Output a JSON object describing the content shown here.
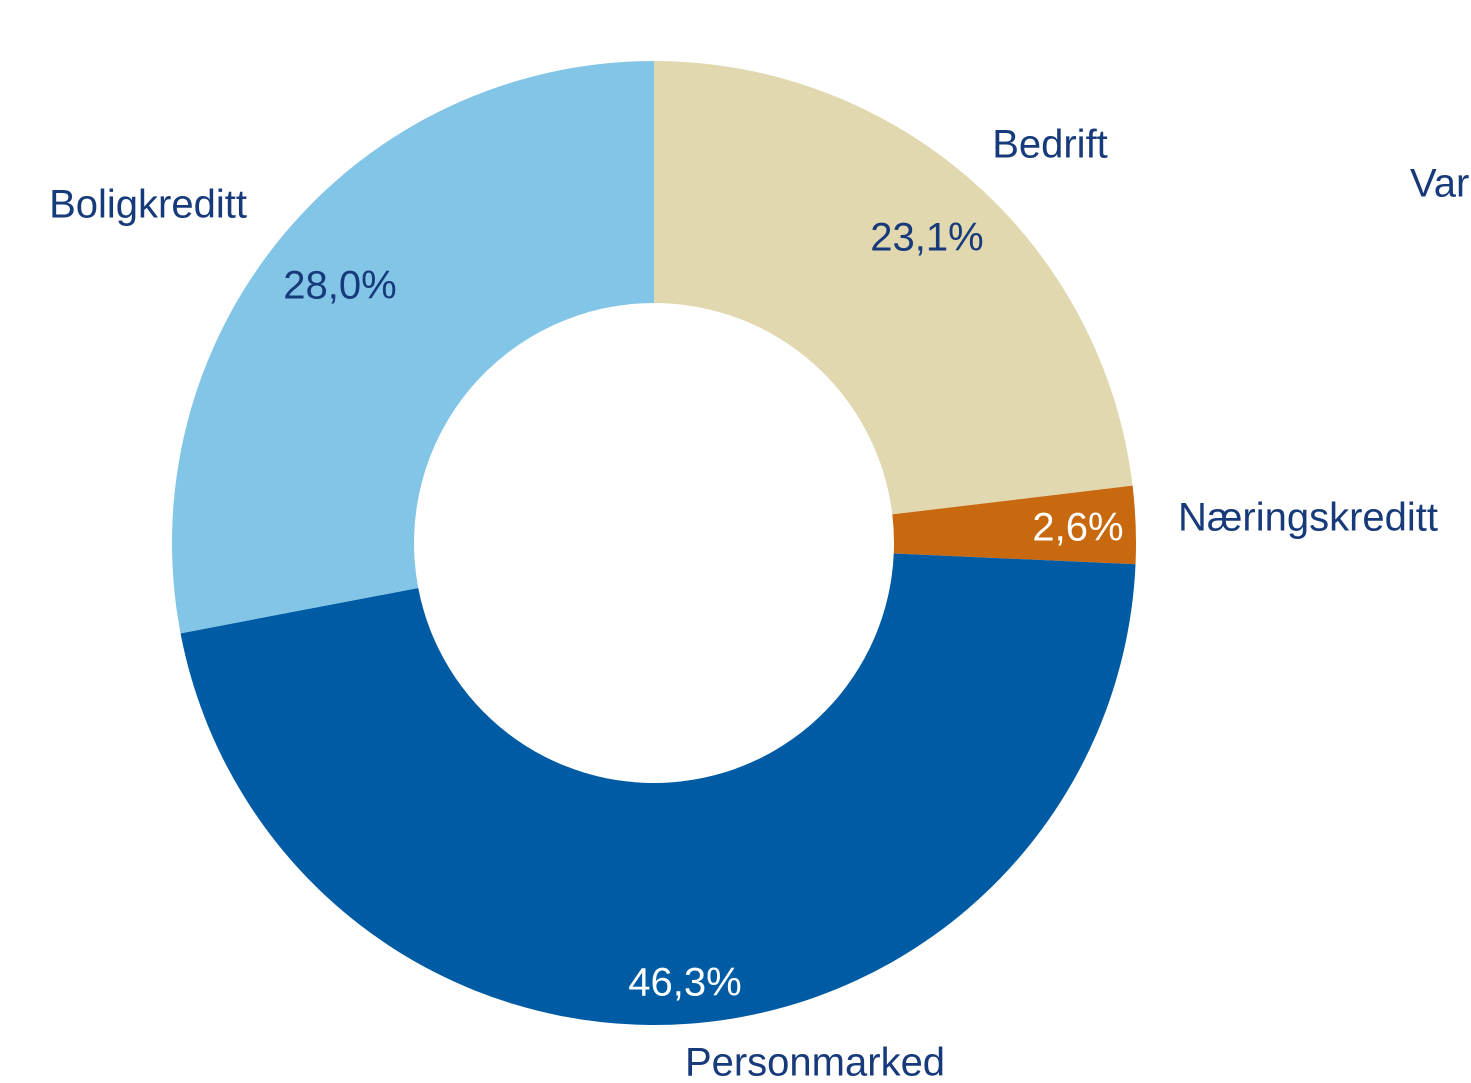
{
  "chart_data": {
    "type": "donut",
    "categories": [
      "Bedrift",
      "Næringskreditt",
      "Personmarked",
      "Boligkreditt"
    ],
    "values": [
      23.1,
      2.6,
      46.3,
      28.0
    ],
    "value_labels": [
      "23,1%",
      "2,6%",
      "46,3%",
      "28,0%"
    ],
    "colors": [
      "#e1d8b0",
      "#c8680f",
      "#005ba5",
      "#82c5e7"
    ],
    "annotation": "Var"
  }
}
